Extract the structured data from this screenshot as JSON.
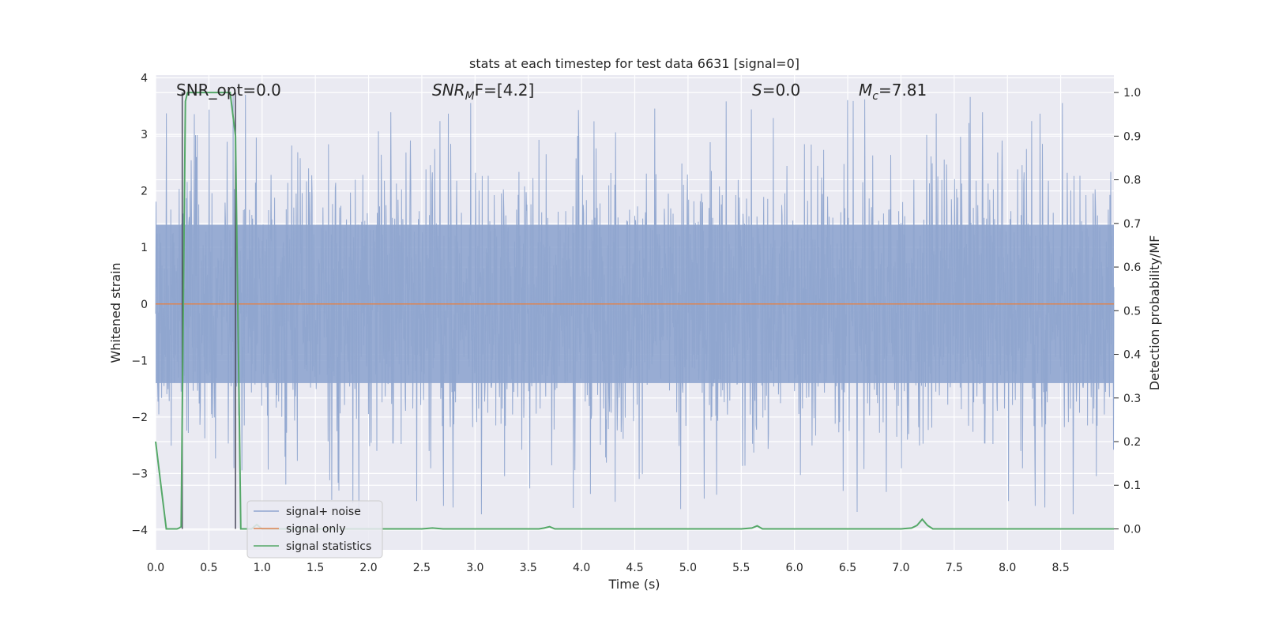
{
  "chart_data": {
    "type": "line",
    "title": "stats at each timestep for test data 6631 [signal=0]",
    "xlabel": "Time (s)",
    "ylabel_left": "Whitened strain",
    "ylabel_right": "Detection probability/MF",
    "xlim": [
      0,
      9.0
    ],
    "ylim_left": [
      -4.35,
      4.05
    ],
    "ylim_right": [
      -0.048,
      1.04
    ],
    "x_ticks": [
      "0.0",
      "0.5",
      "1.0",
      "1.5",
      "2.0",
      "2.5",
      "3.0",
      "3.5",
      "4.0",
      "4.5",
      "5.0",
      "5.5",
      "6.0",
      "6.5",
      "7.0",
      "7.5",
      "8.0",
      "8.5"
    ],
    "y_ticks_left": [
      "−4",
      "−3",
      "−2",
      "−1",
      "0",
      "1",
      "2",
      "3",
      "4"
    ],
    "y_ticks_right": [
      "0.0",
      "0.1",
      "0.2",
      "0.3",
      "0.4",
      "0.5",
      "0.6",
      "0.7",
      "0.8",
      "0.9",
      "1.0"
    ],
    "grid": true,
    "legend_position": "lower-left",
    "annotations": {
      "snr_opt": "SNR_opt=0.0",
      "snr_mf_main": "SNR",
      "snr_mf_sub": "M",
      "snr_mf_rest": "F=[4.2]",
      "s_main": "S",
      "s_rest": "=0.0",
      "mc_main": "M",
      "mc_sub": "c",
      "mc_rest": "=7.81"
    },
    "series": [
      {
        "name": "signal+ noise",
        "color": "#8fa5cf",
        "description_of_envelope": "dense noise strain",
        "x_range": [
          0,
          9.0
        ],
        "typical_amplitude": 1.4,
        "peak_upper": 3.7,
        "peak_lower": -4.0
      },
      {
        "name": "signal only",
        "color": "#dd8452",
        "x": [
          0,
          9.0
        ],
        "y": [
          0,
          0
        ]
      },
      {
        "name": "signal statistics",
        "color": "#55a868",
        "x": [
          0.0,
          0.05,
          0.1,
          0.2,
          0.22,
          0.24,
          0.26,
          0.28,
          0.3,
          0.7,
          0.75,
          0.8,
          0.9,
          0.95,
          1.0,
          1.5,
          2.0,
          2.5,
          2.6,
          2.7,
          3.0,
          3.5,
          3.6,
          3.65,
          3.7,
          3.75,
          4.0,
          5.0,
          5.5,
          5.6,
          5.65,
          5.7,
          5.75,
          6.0,
          6.5,
          7.0,
          7.1,
          7.15,
          7.2,
          7.25,
          7.3,
          7.4,
          8.0,
          8.5,
          9.0
        ],
        "y": [
          0.2,
          0.1,
          0.0,
          0.0,
          0.002,
          0.005,
          0.5,
          0.98,
          1.0,
          1.0,
          0.9,
          0.0,
          0.0,
          0.01,
          0.0,
          0.0,
          0.0,
          0.0,
          0.002,
          0.0,
          0.0,
          0.0,
          0.0,
          0.002,
          0.005,
          0.0,
          0.0,
          0.0,
          0.0,
          0.002,
          0.007,
          0.0,
          0.0,
          0.0,
          0.0,
          0.0,
          0.002,
          0.008,
          0.022,
          0.008,
          0.0,
          0.0,
          0.0,
          0.0,
          0.0
        ]
      }
    ],
    "vertical_markers": [
      0.25,
      0.75
    ]
  }
}
